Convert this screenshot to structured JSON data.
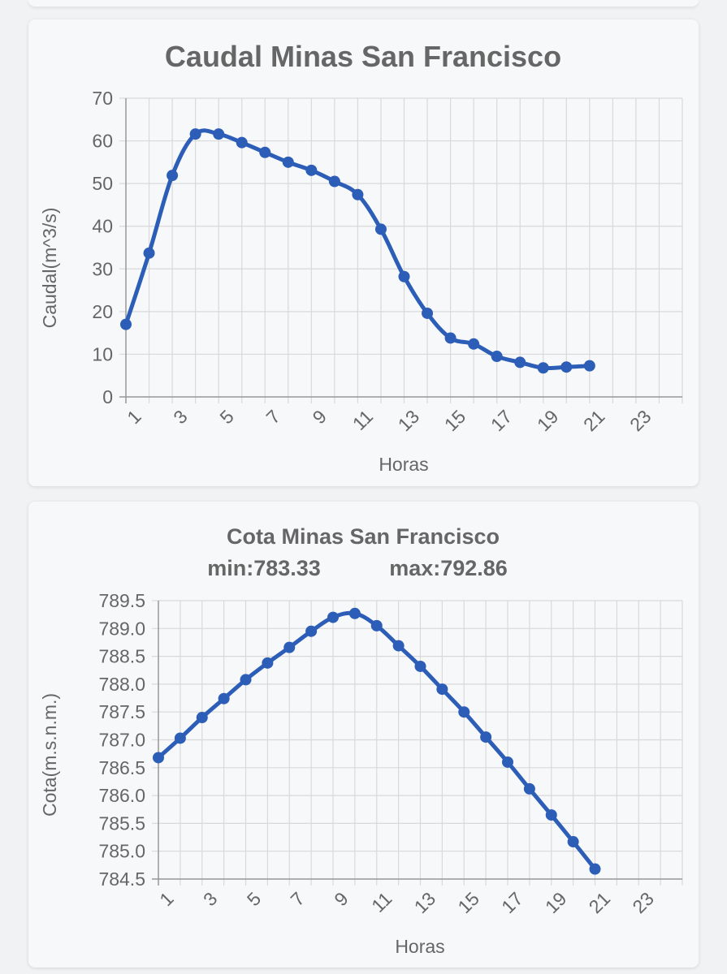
{
  "chart_data": [
    {
      "type": "line",
      "title": "Caudal Minas San Francisco",
      "xlabel": "Horas",
      "ylabel": "Caudal(m^3/s)",
      "xlim": [
        1,
        25
      ],
      "ylim": [
        0,
        70
      ],
      "x_ticks": [
        "1",
        "3",
        "5",
        "7",
        "9",
        "11",
        "13",
        "15",
        "17",
        "19",
        "21",
        "23"
      ],
      "y_ticks": [
        "0",
        "10",
        "20",
        "30",
        "40",
        "50",
        "60",
        "70"
      ],
      "color": "#2c5db7",
      "x": [
        1,
        2,
        3,
        4,
        5,
        6,
        7,
        8,
        9,
        10,
        11,
        12,
        13,
        14,
        15,
        16,
        17,
        18,
        19,
        20,
        21
      ],
      "values": [
        17.0,
        33.7,
        51.9,
        61.6,
        61.6,
        59.6,
        57.3,
        55.0,
        53.1,
        50.5,
        47.4,
        39.3,
        28.2,
        19.6,
        13.8,
        12.4,
        9.5,
        8.1,
        6.8,
        7.0,
        7.3
      ]
    },
    {
      "type": "line",
      "title": "Cota Minas San Francisco",
      "subtitle_min": "min:783.33",
      "subtitle_max": "max:792.86",
      "xlabel": "Horas",
      "ylabel": "Cota(m.s.n.m.)",
      "xlim": [
        1,
        25
      ],
      "ylim": [
        784.5,
        789.5
      ],
      "x_ticks": [
        "1",
        "3",
        "5",
        "7",
        "9",
        "11",
        "13",
        "15",
        "17",
        "19",
        "21",
        "23"
      ],
      "y_ticks": [
        "784.5",
        "785.0",
        "785.5",
        "786.0",
        "786.5",
        "787.0",
        "787.5",
        "788.0",
        "788.5",
        "789.0",
        "789.5"
      ],
      "color": "#2c5db7",
      "x": [
        1,
        2,
        3,
        4,
        5,
        6,
        7,
        8,
        9,
        10,
        11,
        12,
        13,
        14,
        15,
        16,
        17,
        18,
        19,
        20,
        21
      ],
      "values": [
        786.68,
        787.03,
        787.4,
        787.74,
        788.08,
        788.38,
        788.66,
        788.95,
        789.2,
        789.27,
        789.05,
        788.69,
        788.32,
        787.91,
        787.5,
        787.05,
        786.6,
        786.12,
        785.65,
        785.17,
        784.68
      ]
    }
  ]
}
